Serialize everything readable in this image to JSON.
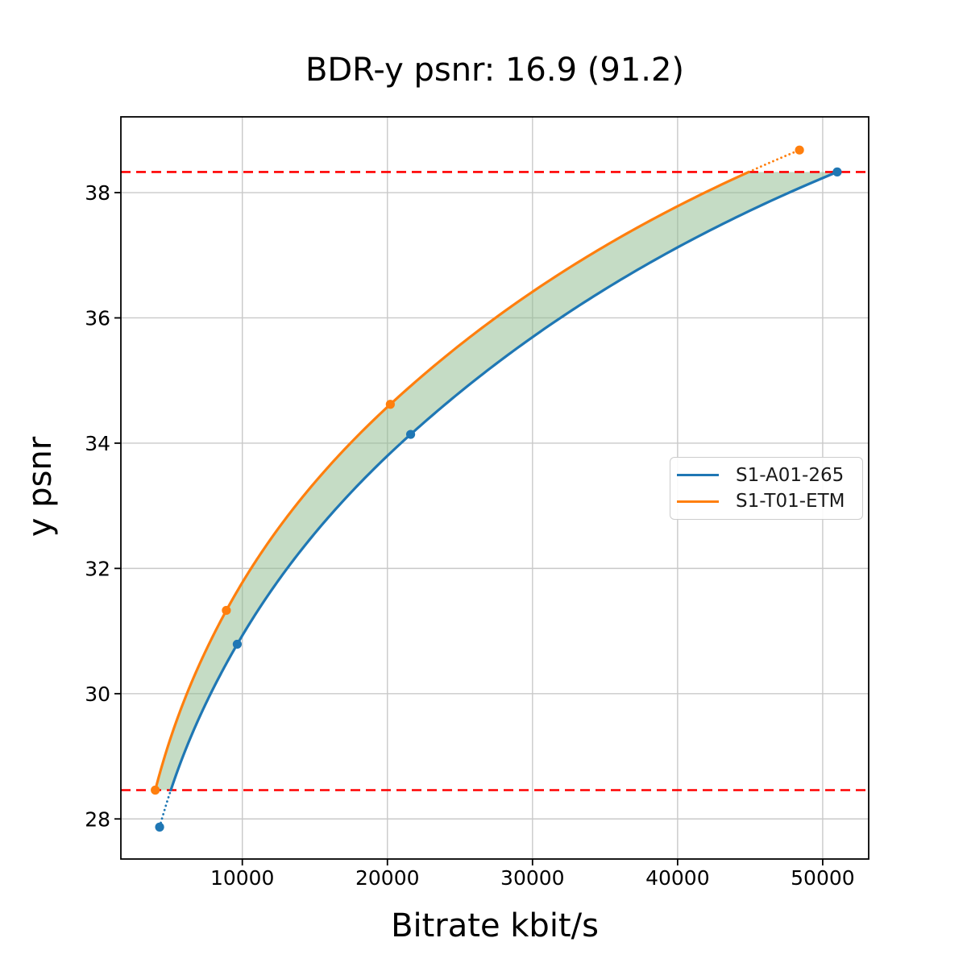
{
  "figure": {
    "title": "BDR-y psnr: 16.9 (91.2)",
    "xlabel": "Bitrate kbit/s",
    "ylabel": "y psnr"
  },
  "chart_data": {
    "type": "line",
    "title": "BDR-y psnr: 16.9 (91.2)",
    "xlabel": "Bitrate kbit/s",
    "ylabel": "y psnr",
    "xlim": [
      1630,
      53170
    ],
    "ylim": [
      27.36,
      39.21
    ],
    "xticks": [
      10000,
      20000,
      30000,
      40000,
      50000
    ],
    "yticks": [
      28,
      30,
      32,
      34,
      36,
      38
    ],
    "grid": true,
    "grid_color": "#c9c9c9",
    "legend_position": "center-right",
    "series": [
      {
        "name": "S1-A01-265",
        "color": "#1f77b4",
        "marker": "circle",
        "points": [
          [
            4300,
            27.87
          ],
          [
            9650,
            30.79
          ],
          [
            21600,
            34.14
          ],
          [
            51000,
            38.33
          ]
        ]
      },
      {
        "name": "S1-T01-ETM",
        "color": "#ff7f0e",
        "marker": "circle",
        "points": [
          [
            4000,
            28.46
          ],
          [
            8900,
            31.33
          ],
          [
            20200,
            34.62
          ],
          [
            48400,
            38.68
          ]
        ]
      }
    ],
    "hlines": {
      "color": "#ff0000",
      "style": "dashed",
      "upper": 38.33,
      "lower": 28.46
    },
    "fill_between": {
      "color": "#8fbc8f",
      "alpha": 0.52
    },
    "interpolation": "pchip-log10"
  }
}
